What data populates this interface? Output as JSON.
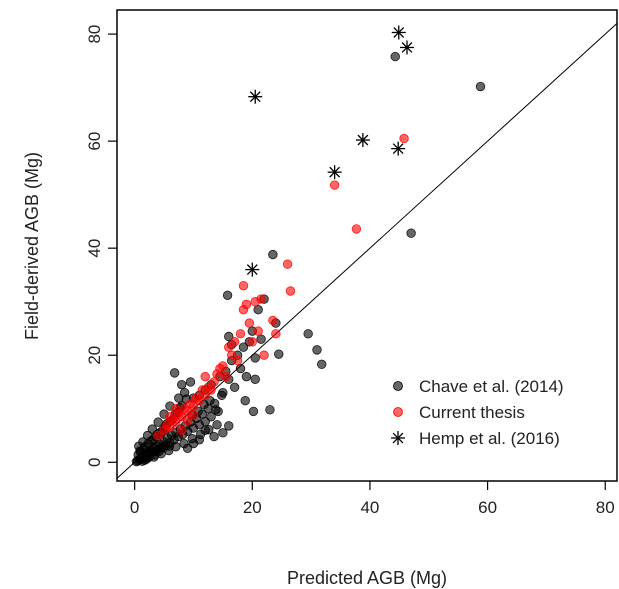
{
  "chart_data": {
    "type": "scatter",
    "title": "",
    "xlabel": "Predicted AGB (Mg)",
    "ylabel": "Field-derived AGB (Mg)",
    "xlim": [
      -3,
      82
    ],
    "ylim": [
      -3.5,
      84.5
    ],
    "xticks": [
      "0",
      "20",
      "40",
      "60",
      "80"
    ],
    "yticks": [
      "0",
      "20",
      "40",
      "60",
      "80"
    ],
    "grid": false,
    "legend_position": "bottom-right",
    "reference_line": "1:1",
    "series": [
      {
        "name": "Chave et al. (2014)",
        "marker": "filled-circle",
        "color": "#000000",
        "points": [
          [
            0.5,
            0.3
          ],
          [
            0.8,
            0.5
          ],
          [
            1.0,
            0.8
          ],
          [
            1.2,
            1.0
          ],
          [
            1.4,
            0.7
          ],
          [
            1.6,
            1.3
          ],
          [
            1.8,
            1.1
          ],
          [
            2.0,
            1.5
          ],
          [
            2.2,
            1.9
          ],
          [
            2.5,
            1.2
          ],
          [
            2.7,
            2.2
          ],
          [
            3.0,
            1.8
          ],
          [
            3.2,
            2.6
          ],
          [
            3.5,
            2.1
          ],
          [
            3.8,
            3.0
          ],
          [
            4.0,
            2.4
          ],
          [
            4.3,
            3.4
          ],
          [
            4.6,
            2.8
          ],
          [
            5.0,
            3.8
          ],
          [
            5.3,
            3.2
          ],
          [
            5.6,
            4.5
          ],
          [
            6.0,
            3.6
          ],
          [
            6.3,
            5.0
          ],
          [
            6.7,
            4.2
          ],
          [
            7.0,
            5.6
          ],
          [
            7.4,
            4.8
          ],
          [
            7.8,
            6.2
          ],
          [
            8.2,
            5.2
          ],
          [
            8.6,
            6.8
          ],
          [
            9.0,
            5.8
          ],
          [
            9.5,
            7.5
          ],
          [
            10.0,
            6.4
          ],
          [
            10.5,
            8.2
          ],
          [
            11.0,
            7.0
          ],
          [
            11.5,
            9.0
          ],
          [
            12.0,
            7.6
          ],
          [
            12.5,
            10.0
          ],
          [
            13.0,
            8.5
          ],
          [
            13.6,
            11.0
          ],
          [
            14.2,
            9.5
          ],
          [
            1.5,
            2.5
          ],
          [
            2.3,
            3.5
          ],
          [
            3.1,
            4.2
          ],
          [
            3.9,
            5.3
          ],
          [
            4.8,
            6.0
          ],
          [
            5.5,
            7.2
          ],
          [
            6.5,
            8.0
          ],
          [
            7.3,
            9.3
          ],
          [
            8.0,
            10.5
          ],
          [
            8.8,
            11.8
          ],
          [
            2.0,
            0.6
          ],
          [
            3.3,
            1.0
          ],
          [
            4.5,
            1.6
          ],
          [
            5.8,
            2.2
          ],
          [
            7.0,
            2.9
          ],
          [
            8.4,
            3.5
          ],
          [
            9.8,
            4.4
          ],
          [
            11.2,
            5.2
          ],
          [
            12.6,
            6.1
          ],
          [
            14.0,
            7.0
          ],
          [
            1.0,
            2.0
          ],
          [
            1.8,
            2.9
          ],
          [
            2.8,
            4.0
          ],
          [
            3.6,
            4.8
          ],
          [
            4.4,
            5.6
          ],
          [
            5.2,
            6.6
          ],
          [
            6.1,
            7.7
          ],
          [
            6.9,
            9.0
          ],
          [
            7.7,
            10.2
          ],
          [
            8.5,
            13.0
          ],
          [
            0.3,
            0.1
          ],
          [
            0.6,
            1.4
          ],
          [
            0.9,
            2.1
          ],
          [
            1.3,
            0.2
          ],
          [
            1.7,
            0.4
          ],
          [
            2.4,
            0.9
          ],
          [
            3.4,
            1.4
          ],
          [
            4.1,
            2.0
          ],
          [
            4.9,
            2.7
          ],
          [
            5.9,
            3.0
          ],
          [
            10.0,
            12.0
          ],
          [
            11.0,
            12.5
          ],
          [
            12.0,
            13.5
          ],
          [
            13.0,
            14.5
          ],
          [
            14.5,
            16.0
          ],
          [
            15.0,
            13.0
          ],
          [
            15.5,
            17.0
          ],
          [
            16.0,
            15.5
          ],
          [
            16.5,
            19.0
          ],
          [
            17.0,
            14.0
          ],
          [
            17.5,
            20.0
          ],
          [
            18.0,
            17.5
          ],
          [
            18.5,
            21.5
          ],
          [
            19.0,
            16.0
          ],
          [
            19.5,
            22.5
          ],
          [
            20.0,
            24.5
          ],
          [
            20.5,
            19.5
          ],
          [
            21.0,
            28.5
          ],
          [
            21.5,
            23.0
          ],
          [
            22.0,
            30.5
          ],
          [
            15.8,
            31.2
          ],
          [
            18.8,
            11.5
          ],
          [
            20.2,
            9.5
          ],
          [
            20.5,
            15.5
          ],
          [
            23.0,
            9.8
          ],
          [
            23.5,
            38.8
          ],
          [
            24.0,
            26.0
          ],
          [
            24.5,
            20.2
          ],
          [
            29.5,
            24.0
          ],
          [
            31.0,
            21.0
          ],
          [
            31.8,
            18.3
          ],
          [
            16.0,
            23.5
          ],
          [
            16.5,
            22.0
          ],
          [
            12.0,
            6.0
          ],
          [
            13.5,
            4.8
          ],
          [
            11.0,
            4.2
          ],
          [
            10.0,
            3.5
          ],
          [
            9.0,
            2.6
          ],
          [
            15.0,
            5.5
          ],
          [
            16.0,
            6.8
          ],
          [
            6.8,
            16.7
          ],
          [
            8.0,
            14.5
          ],
          [
            9.5,
            15.0
          ],
          [
            44.3,
            75.8
          ],
          [
            47.0,
            42.8
          ],
          [
            58.8,
            70.2
          ],
          [
            7.5,
            12.0
          ],
          [
            6.0,
            10.5
          ],
          [
            5.0,
            9.0
          ],
          [
            4.0,
            7.5
          ],
          [
            3.0,
            6.2
          ],
          [
            2.2,
            5.0
          ],
          [
            1.4,
            3.8
          ],
          [
            0.7,
            3.0
          ],
          [
            14.8,
            12.5
          ],
          [
            13.8,
            9.8
          ],
          [
            12.8,
            11.5
          ],
          [
            11.8,
            10.8
          ],
          [
            10.8,
            9.5
          ],
          [
            9.8,
            8.8
          ]
        ]
      },
      {
        "name": "Current thesis",
        "marker": "filled-circle",
        "color": "#ff0000",
        "points": [
          [
            4.0,
            5.0
          ],
          [
            5.0,
            6.0
          ],
          [
            5.5,
            7.0
          ],
          [
            6.0,
            6.5
          ],
          [
            6.5,
            8.0
          ],
          [
            7.0,
            7.5
          ],
          [
            7.5,
            9.0
          ],
          [
            8.0,
            8.5
          ],
          [
            8.5,
            10.0
          ],
          [
            9.0,
            9.5
          ],
          [
            9.5,
            11.0
          ],
          [
            10.0,
            10.5
          ],
          [
            10.5,
            12.0
          ],
          [
            11.0,
            11.5
          ],
          [
            11.5,
            13.5
          ],
          [
            12.0,
            12.5
          ],
          [
            12.5,
            14.0
          ],
          [
            13.0,
            13.5
          ],
          [
            13.5,
            15.0
          ],
          [
            14.0,
            16.5
          ],
          [
            14.5,
            17.5
          ],
          [
            15.0,
            18.0
          ],
          [
            15.5,
            16.0
          ],
          [
            16.0,
            21.5
          ],
          [
            16.5,
            20.0
          ],
          [
            17.0,
            22.5
          ],
          [
            17.5,
            19.0
          ],
          [
            18.0,
            24.0
          ],
          [
            18.5,
            28.5
          ],
          [
            19.0,
            29.5
          ],
          [
            18.5,
            33.0
          ],
          [
            19.5,
            26.0
          ],
          [
            20.0,
            22.5
          ],
          [
            20.5,
            30.0
          ],
          [
            21.0,
            24.5
          ],
          [
            21.5,
            30.5
          ],
          [
            22.0,
            20.0
          ],
          [
            23.5,
            26.5
          ],
          [
            24.0,
            24.0
          ],
          [
            26.0,
            37.0
          ],
          [
            26.5,
            32.0
          ],
          [
            34.0,
            51.8
          ],
          [
            37.7,
            43.6
          ],
          [
            45.8,
            60.5
          ],
          [
            8.0,
            6.0
          ],
          [
            9.0,
            7.8
          ],
          [
            10.0,
            8.8
          ],
          [
            7.0,
            10.0
          ],
          [
            6.0,
            8.5
          ],
          [
            12.0,
            16.0
          ]
        ]
      },
      {
        "name": "Hemp et al. (2016)",
        "marker": "asterisk",
        "color": "#000000",
        "points": [
          [
            20.5,
            68.3
          ],
          [
            20.0,
            36.0
          ],
          [
            34.0,
            54.2
          ],
          [
            38.8,
            60.2
          ],
          [
            44.8,
            58.6
          ],
          [
            44.9,
            80.3
          ],
          [
            46.3,
            77.5
          ]
        ]
      }
    ]
  }
}
